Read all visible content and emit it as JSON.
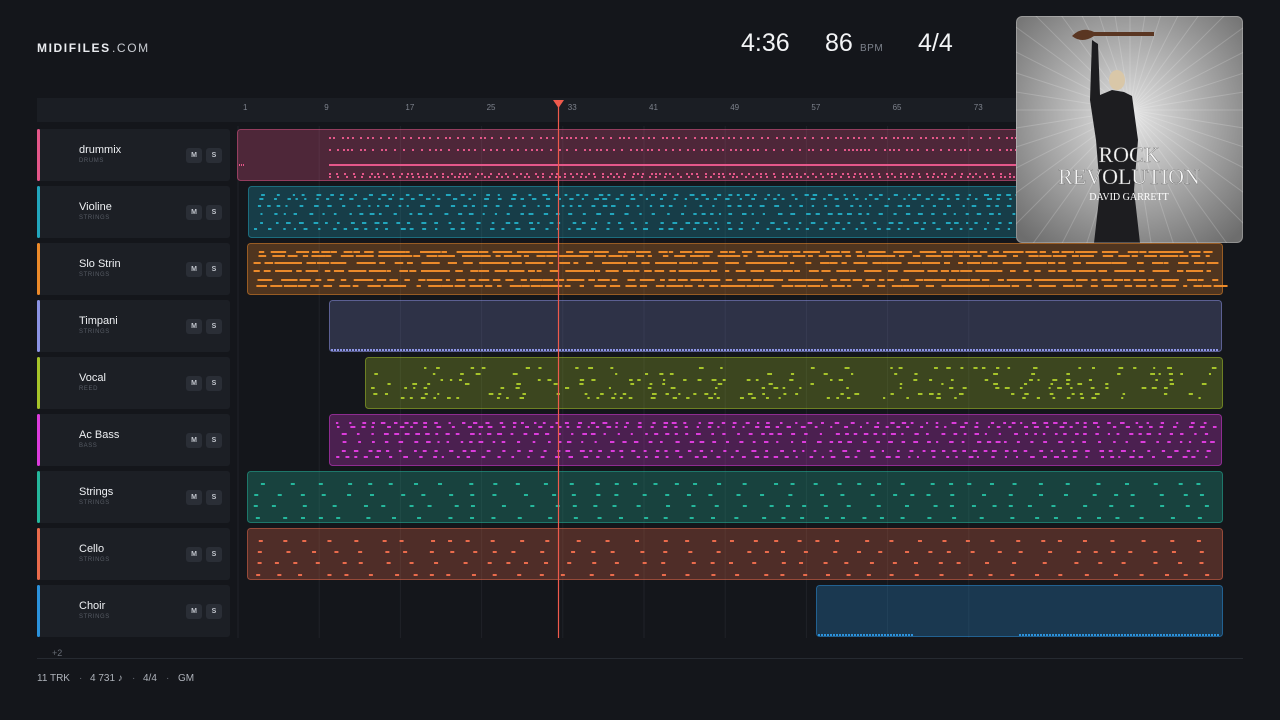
{
  "header": {
    "brand": "MIDIFILES",
    "brand_suffix": ".COM",
    "duration": "4:36",
    "tempo": 86,
    "tempo_unit": "BPM",
    "time_signature": "4/4"
  },
  "album": {
    "title": [
      "ROCK",
      "REVOLUTION"
    ],
    "artist": "DAVID GARRETT"
  },
  "ruler": [
    1,
    9,
    17,
    25,
    33,
    41,
    49,
    57,
    65,
    73
  ],
  "tracks": [
    {
      "name": "drummix",
      "category": "DRUMS",
      "mute": "M",
      "solo": "S",
      "color": "#e5578a"
    },
    {
      "name": "Violine",
      "category": "STRINGS",
      "mute": "M",
      "solo": "S",
      "color": "#22a6bd"
    },
    {
      "name": "Slo Strin",
      "category": "STRINGS",
      "mute": "M",
      "solo": "S",
      "color": "#ec8a2a"
    },
    {
      "name": "Timpani",
      "category": "STRINGS",
      "mute": "M",
      "solo": "S",
      "color": "#8c94e4"
    },
    {
      "name": "Vocal",
      "category": "REED",
      "mute": "M",
      "solo": "S",
      "color": "#a6c42a"
    },
    {
      "name": "Ac Bass",
      "category": "BASS",
      "mute": "M",
      "solo": "S",
      "color": "#dc3cdc"
    },
    {
      "name": "Strings",
      "category": "STRINGS",
      "mute": "M",
      "solo": "S",
      "color": "#25b79c"
    },
    {
      "name": "Cello",
      "category": "STRINGS",
      "mute": "M",
      "solo": "S",
      "color": "#ea6b4c"
    },
    {
      "name": "Choir",
      "category": "STRINGS",
      "mute": "M",
      "solo": "S",
      "color": "#2b92dc"
    }
  ],
  "more_tracks": "+2",
  "footer": {
    "items": [
      "11 TRK",
      "4 731 ♪",
      "4/4",
      "GM"
    ],
    "separator": "·"
  }
}
